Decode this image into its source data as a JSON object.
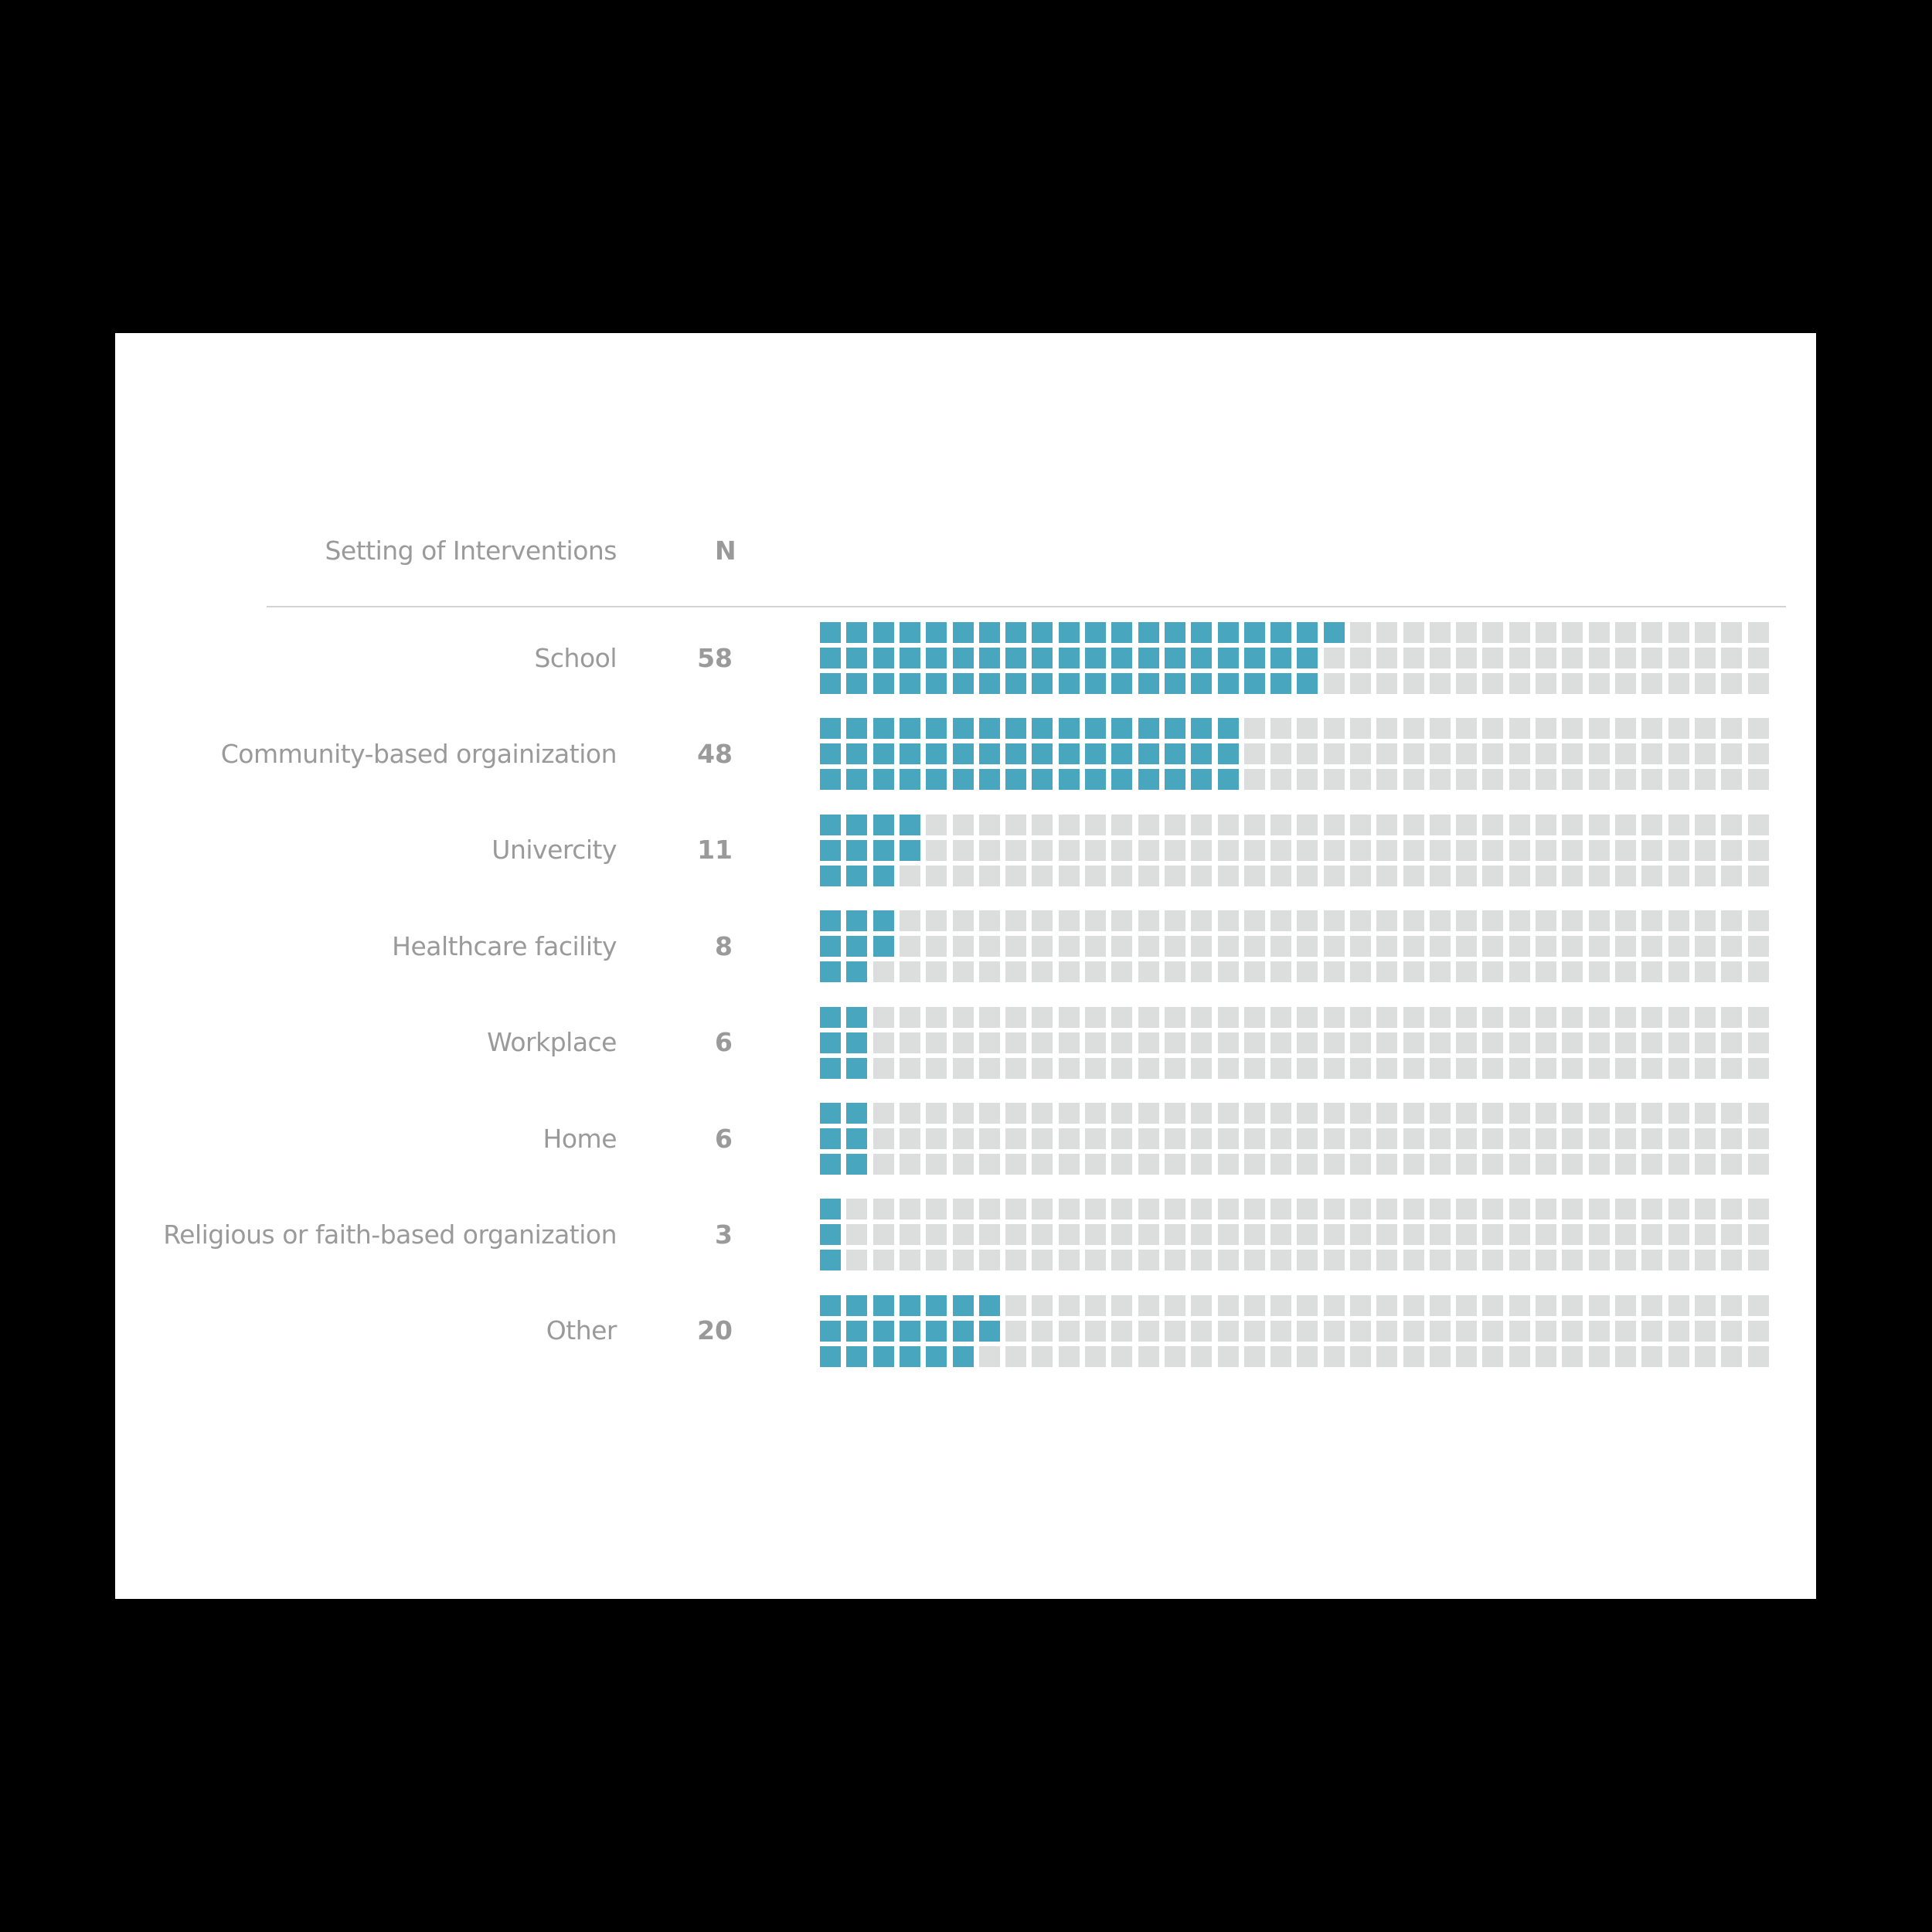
{
  "header": {
    "setting_label": "Setting of Interventions",
    "n_label": "N"
  },
  "colors": {
    "filled": "#48a6bf",
    "empty": "#dcdddd",
    "text": "#9a9a9a",
    "divider": "#d3d3d3",
    "background": "#ffffff",
    "frame": "#000000"
  },
  "grid": {
    "columns": 36,
    "rows_per_group": 3,
    "fill_order": "column-major"
  },
  "rows": [
    {
      "label": "School",
      "n": "58"
    },
    {
      "label": "Community-based orgainization",
      "n": "48"
    },
    {
      "label": "Univercity",
      "n": "11"
    },
    {
      "label": "Healthcare facility",
      "n": "8"
    },
    {
      "label": "Workplace",
      "n": "6"
    },
    {
      "label": "Home",
      "n": "6"
    },
    {
      "label": "Religious or faith-based organization",
      "n": "3"
    },
    {
      "label": "Other",
      "n": "20"
    }
  ],
  "chart_data": {
    "type": "waffle",
    "title": "",
    "column_headers": [
      "Setting of Interventions",
      "N"
    ],
    "categories": [
      "School",
      "Community-based orgainization",
      "Univercity",
      "Healthcare facility",
      "Workplace",
      "Home",
      "Religious or faith-based organization",
      "Other"
    ],
    "values": [
      58,
      48,
      11,
      8,
      6,
      6,
      3,
      20
    ],
    "cells_per_category": 108,
    "grid_shape": [
      3,
      36
    ],
    "filled_color": "#48a6bf",
    "empty_color": "#dcdddd",
    "xlabel": "",
    "ylabel": "",
    "legend": "none",
    "grid": false
  }
}
